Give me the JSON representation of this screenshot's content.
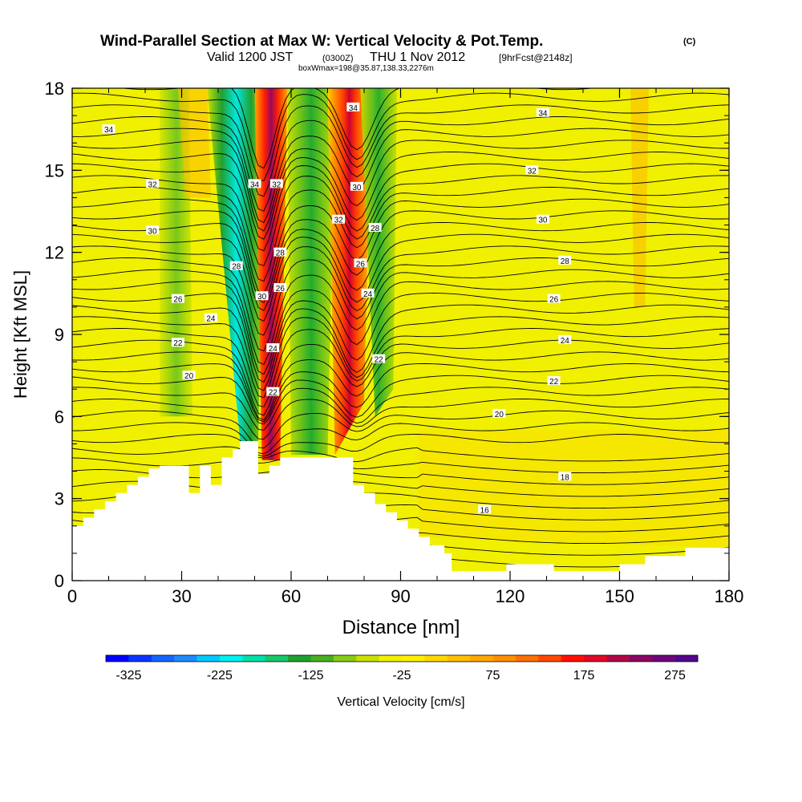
{
  "chart_data": {
    "type": "heatmap",
    "title": "Wind-Parallel Section at Max W: Vertical Velocity & Pot.Temp.",
    "title_mark": "(C)",
    "subtitle": {
      "valid": "Valid 1200 JST",
      "zulu": "(0300Z)",
      "date": "THU 1 Nov 2012",
      "fcst": "[9hrFcst@2148z]"
    },
    "subtitle2": "boxWmax=198@35.87,138.33,2276m",
    "xlabel": "Distance [nm]",
    "ylabel": "Height [Kft MSL]",
    "xlim": [
      0,
      180
    ],
    "ylim": [
      0,
      18
    ],
    "xticks": [
      "0",
      "30",
      "60",
      "90",
      "120",
      "150",
      "180"
    ],
    "yticks": [
      "0",
      "3",
      "6",
      "9",
      "12",
      "15",
      "18"
    ],
    "colorbar": {
      "label": "Vertical Velocity [cm/s]",
      "tick_labels": [
        "-325",
        "-225",
        "-125",
        "-25",
        "75",
        "175",
        "275"
      ],
      "min": -350,
      "max": 300,
      "step": 25,
      "colors": [
        "#0000ff",
        "#0a36ff",
        "#1466ff",
        "#1e8cff",
        "#00c8ff",
        "#00f0f0",
        "#00e0a8",
        "#18c868",
        "#20a030",
        "#48b020",
        "#88cc18",
        "#c8e000",
        "#f0f000",
        "#fff000",
        "#ffd800",
        "#ffc000",
        "#ffa800",
        "#ff9000",
        "#ff7000",
        "#ff4800",
        "#ff1000",
        "#e00828",
        "#b00848",
        "#8c0860",
        "#6e0878",
        "#50088c"
      ]
    },
    "contour_labels": [
      {
        "x": 10,
        "y": 16.5,
        "label": "34"
      },
      {
        "x": 22,
        "y": 14.5,
        "label": "32"
      },
      {
        "x": 22,
        "y": 12.8,
        "label": "30"
      },
      {
        "x": 29,
        "y": 10.3,
        "label": "26"
      },
      {
        "x": 38,
        "y": 9.6,
        "label": "24"
      },
      {
        "x": 29,
        "y": 8.7,
        "label": "22"
      },
      {
        "x": 32,
        "y": 7.5,
        "label": "20"
      },
      {
        "x": 50,
        "y": 14.5,
        "label": "34"
      },
      {
        "x": 56,
        "y": 14.5,
        "label": "32"
      },
      {
        "x": 45,
        "y": 11.5,
        "label": "28"
      },
      {
        "x": 52,
        "y": 10.4,
        "label": "30"
      },
      {
        "x": 57,
        "y": 12.0,
        "label": "28"
      },
      {
        "x": 57,
        "y": 10.7,
        "label": "26"
      },
      {
        "x": 55,
        "y": 8.5,
        "label": "24"
      },
      {
        "x": 55,
        "y": 6.9,
        "label": "22"
      },
      {
        "x": 77,
        "y": 17.3,
        "label": "34"
      },
      {
        "x": 78,
        "y": 14.4,
        "label": "30"
      },
      {
        "x": 73,
        "y": 13.2,
        "label": "32"
      },
      {
        "x": 83,
        "y": 12.9,
        "label": "28"
      },
      {
        "x": 79,
        "y": 11.6,
        "label": "26"
      },
      {
        "x": 81,
        "y": 10.5,
        "label": "24"
      },
      {
        "x": 84,
        "y": 8.1,
        "label": "22"
      },
      {
        "x": 129,
        "y": 17.1,
        "label": "34"
      },
      {
        "x": 126,
        "y": 15.0,
        "label": "32"
      },
      {
        "x": 129,
        "y": 13.2,
        "label": "30"
      },
      {
        "x": 135,
        "y": 11.7,
        "label": "28"
      },
      {
        "x": 132,
        "y": 10.3,
        "label": "26"
      },
      {
        "x": 135,
        "y": 8.8,
        "label": "24"
      },
      {
        "x": 132,
        "y": 7.3,
        "label": "22"
      },
      {
        "x": 117,
        "y": 6.1,
        "label": "20"
      },
      {
        "x": 135,
        "y": 3.8,
        "label": "18"
      },
      {
        "x": 113,
        "y": 2.6,
        "label": "16"
      }
    ],
    "terrain": [
      [
        0,
        2.0
      ],
      [
        3,
        2.0
      ],
      [
        3,
        2.3
      ],
      [
        6,
        2.3
      ],
      [
        6,
        2.6
      ],
      [
        9,
        2.6
      ],
      [
        9,
        2.9
      ],
      [
        12,
        2.9
      ],
      [
        12,
        3.2
      ],
      [
        15,
        3.2
      ],
      [
        15,
        3.5
      ],
      [
        18,
        3.5
      ],
      [
        18,
        3.8
      ],
      [
        21,
        3.8
      ],
      [
        21,
        4.1
      ],
      [
        24,
        4.1
      ],
      [
        24,
        4.2
      ],
      [
        32,
        4.2
      ],
      [
        32,
        3.2
      ],
      [
        35,
        3.2
      ],
      [
        35,
        4.2
      ],
      [
        38,
        4.2
      ],
      [
        38,
        3.5
      ],
      [
        41,
        3.5
      ],
      [
        41,
        4.5
      ],
      [
        44,
        4.5
      ],
      [
        44,
        4.8
      ],
      [
        46,
        4.8
      ],
      [
        46,
        5.1
      ],
      [
        51,
        5.1
      ],
      [
        51,
        3.9
      ],
      [
        54,
        3.9
      ],
      [
        54,
        4.2
      ],
      [
        57,
        4.2
      ],
      [
        57,
        4.5
      ],
      [
        77,
        4.5
      ],
      [
        77,
        3.5
      ],
      [
        80,
        3.5
      ],
      [
        80,
        3.2
      ],
      [
        83,
        3.2
      ],
      [
        83,
        2.8
      ],
      [
        86,
        2.8
      ],
      [
        86,
        2.5
      ],
      [
        89,
        2.5
      ],
      [
        89,
        2.2
      ],
      [
        92,
        2.2
      ],
      [
        92,
        1.9
      ],
      [
        95,
        1.9
      ],
      [
        95,
        1.6
      ],
      [
        98,
        1.6
      ],
      [
        98,
        1.3
      ],
      [
        102,
        1.3
      ],
      [
        102,
        1.0
      ],
      [
        104,
        1.0
      ],
      [
        104,
        0.35
      ],
      [
        119,
        0.35
      ],
      [
        119,
        0.6
      ],
      [
        132,
        0.6
      ],
      [
        132,
        0.35
      ],
      [
        150,
        0.35
      ],
      [
        150,
        0.6
      ],
      [
        157,
        0.6
      ],
      [
        157,
        0.9
      ],
      [
        168,
        0.9
      ],
      [
        168,
        1.2
      ],
      [
        180,
        1.2
      ],
      [
        180,
        0
      ]
    ]
  }
}
